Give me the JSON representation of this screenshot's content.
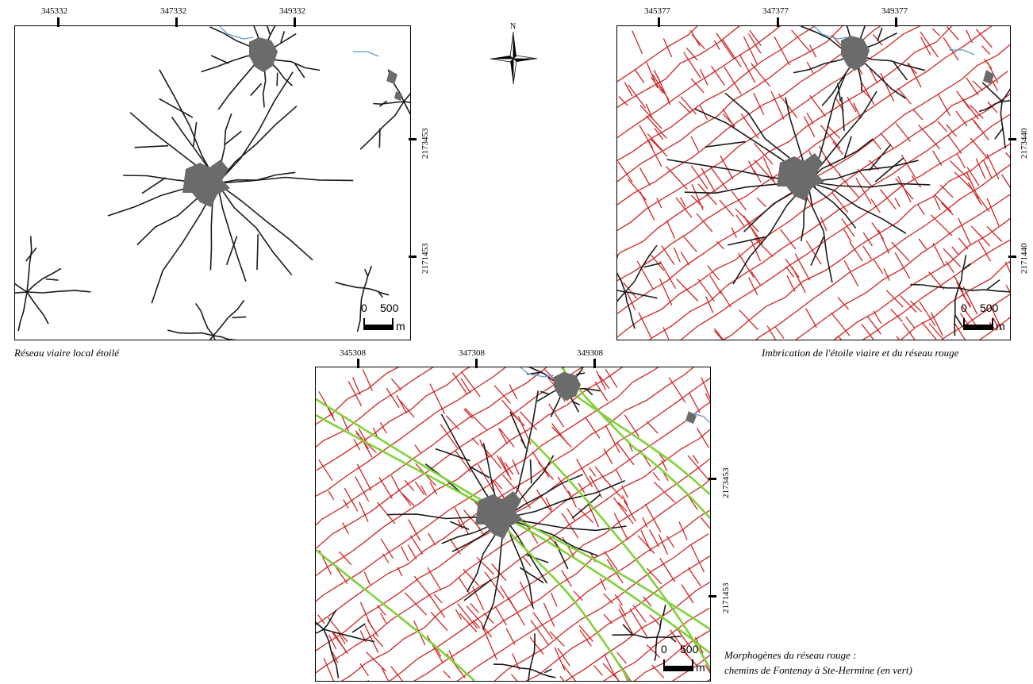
{
  "panels": [
    {
      "id": "left",
      "x_ticks": [
        "345332",
        "347332",
        "349332"
      ],
      "y_ticks": [
        "2173453",
        "2171453"
      ],
      "caption": "Réseau viaire local étoilé",
      "scale": {
        "zero": "0",
        "value": "500",
        "unit": "m"
      }
    },
    {
      "id": "right",
      "x_ticks": [
        "345377",
        "347377",
        "349377"
      ],
      "y_ticks": [
        "2173440",
        "2171440"
      ],
      "caption": "Imbrication de l'étoile viaire et du réseau rouge",
      "scale": {
        "zero": "0",
        "value": "500",
        "unit": "m"
      }
    },
    {
      "id": "bottom",
      "x_ticks": [
        "345308",
        "347308",
        "349308"
      ],
      "y_ticks": [
        "2173453",
        "2171453"
      ],
      "caption_lines": [
        "Morphogènes du réseau rouge :",
        "chemins de Fontenay à Ste-Hermine (en vert)"
      ],
      "scale": {
        "zero": "0",
        "value": "500",
        "unit": "m"
      }
    }
  ],
  "north_arrow": {
    "letter": "N",
    "icon": "north-arrow-icon"
  },
  "colors": {
    "star_roads": "#1a1a1a",
    "red_network": "#d02424",
    "green_paths": "#7fd23a",
    "water": "#5b9bd5",
    "settlement": "#6b6b6b"
  }
}
